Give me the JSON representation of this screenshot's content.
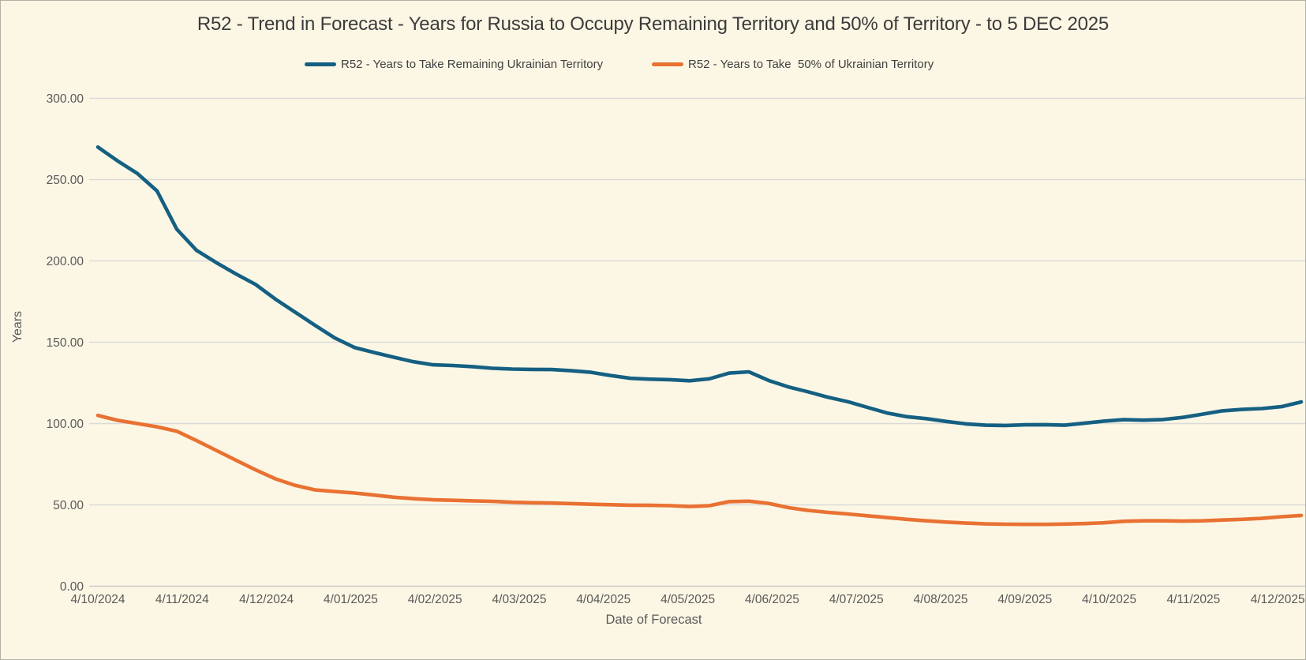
{
  "title": "R52 - Trend in Forecast - Years for Russia to Occupy Remaining Territory and 50% of Territory - to 5 DEC 2025",
  "colors": {
    "background": "#FCF7E5",
    "series_remaining": "#156082",
    "series_fifty": "#E97132",
    "gridline": "#DADADA",
    "axis_line": "#C9C9C9",
    "axis_text": "#595959",
    "title_text": "#3B3B3B"
  },
  "legend": [
    {
      "label": "R52 - Years to Take Remaining Ukrainian Territory",
      "color": "#156082"
    },
    {
      "label": "R52 - Years to Take  50% of Ukrainian Territory",
      "color": "#E97132"
    }
  ],
  "y_axis": {
    "title": "Years",
    "tick_labels": [
      "0.00",
      "50.00",
      "100.00",
      "150.00",
      "200.00",
      "250.00",
      "300.00"
    ],
    "min": 0,
    "max": 300,
    "step": 50
  },
  "x_axis": {
    "title": "Date of Forecast",
    "tick_labels": [
      "4/10/2024",
      "4/11/2024",
      "4/12/2024",
      "4/01/2025",
      "4/02/2025",
      "4/03/2025",
      "4/04/2025",
      "4/05/2025",
      "4/06/2025",
      "4/07/2025",
      "4/08/2025",
      "4/09/2025",
      "4/10/2025",
      "4/11/2025",
      "4/12/2025"
    ]
  },
  "chart_data": {
    "type": "line",
    "title": "R52 - Trend in Forecast - Years for Russia to Occupy Remaining Territory and 50% of Territory - to 5 DEC 2025",
    "xlabel": "Date of Forecast",
    "ylabel": "Years",
    "ylim": [
      0,
      300
    ],
    "grid": "horizontal",
    "legend_position": "top",
    "x_tick_labels": [
      "4/10/2024",
      "4/11/2024",
      "4/12/2024",
      "4/01/2025",
      "4/02/2025",
      "4/03/2025",
      "4/04/2025",
      "4/05/2025",
      "4/06/2025",
      "4/07/2025",
      "4/08/2025",
      "4/09/2025",
      "4/10/2025",
      "4/11/2025",
      "4/12/2025"
    ],
    "x_note": "weekly forecasts, 62 points from 4/10/2024 to 5/12/2025",
    "series": [
      {
        "name": "R52 - Years to Take Remaining Ukrainian Territory",
        "color": "#156082",
        "values": [
          270,
          261.5,
          253.8,
          243,
          219.5,
          206.5,
          199,
          192,
          185.5,
          176.5,
          168.5,
          160.5,
          152.7,
          146.8,
          143.7,
          140.8,
          138,
          136.1,
          135.7,
          135,
          134,
          133.5,
          133.3,
          133.2,
          132.5,
          131.5,
          129.5,
          127.8,
          127.3,
          127,
          126.3,
          127.5,
          131,
          131.8,
          126.5,
          122.5,
          119.5,
          116.2,
          113.5,
          110,
          106.5,
          104.2,
          103,
          101.3,
          99.8,
          99,
          98.8,
          99.2,
          99.3,
          99,
          100.2,
          101.5,
          102.4,
          102.1,
          102.5,
          103.8,
          105.8,
          107.8,
          108.7,
          109.2,
          110.4,
          113.3
        ]
      },
      {
        "name": "R52 - Years to Take  50% of Ukrainian Territory",
        "color": "#E97132",
        "values": [
          105,
          102,
          100,
          98,
          95.3,
          89.5,
          83.5,
          77.5,
          71.5,
          66,
          62,
          59.2,
          58.2,
          57.3,
          56,
          54.7,
          53.8,
          53.1,
          52.8,
          52.5,
          52.2,
          51.6,
          51.3,
          51.1,
          50.8,
          50.4,
          50.1,
          49.8,
          49.7,
          49.5,
          49,
          49.5,
          52,
          52.3,
          50.9,
          48.3,
          46.6,
          45.4,
          44.4,
          43.3,
          42.2,
          41.1,
          40.2,
          39.4,
          38.8,
          38.3,
          38.1,
          38,
          38,
          38.2,
          38.5,
          39,
          39.9,
          40.2,
          40.2,
          40,
          40.2,
          40.7,
          41.1,
          41.7,
          42.7,
          43.5
        ]
      }
    ]
  }
}
